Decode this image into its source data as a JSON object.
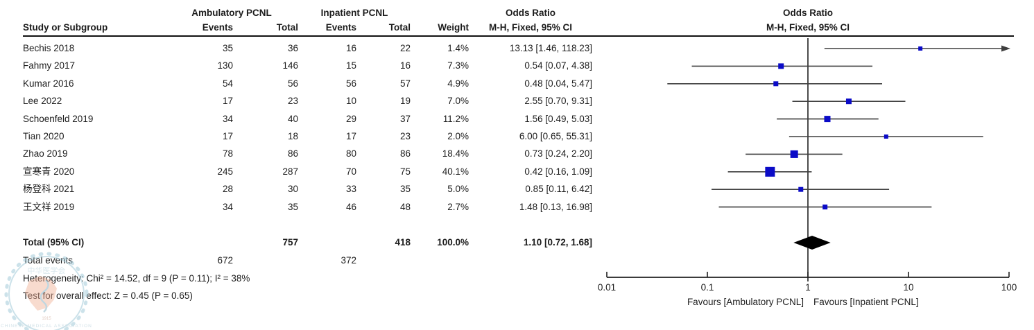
{
  "header": {
    "group_ambulatory": "Ambulatory PCNL",
    "group_inpatient": "Inpatient PCNL",
    "col_study": "Study or Subgroup",
    "col_events": "Events",
    "col_total": "Total",
    "col_weight": "Weight",
    "odds_ratio_title": "Odds Ratio",
    "odds_ratio_method": "M-H, Fixed, 95% CI"
  },
  "chart_data": {
    "type": "scatter",
    "subtype": "forest-plot-meta-analysis",
    "effect_measure": "Odds Ratio, Mantel-Haenszel Fixed effect, 95% CI",
    "x_scale": "log10",
    "x_ticks": [
      0.01,
      0.1,
      1,
      10,
      100
    ],
    "x_range": [
      0.01,
      100
    ],
    "legend_position": "none",
    "grid": false,
    "studies": [
      {
        "name": "Bechis 2018",
        "amb_events": "35",
        "amb_total": "36",
        "inp_events": "16",
        "inp_total": "22",
        "weight_pct": 1.4,
        "weight_label": "1.4%",
        "or": 13.13,
        "ci_low": 1.46,
        "ci_high": 118.23,
        "or_label": "13.13 [1.46, 118.23]"
      },
      {
        "name": "Fahmy 2017",
        "amb_events": "130",
        "amb_total": "146",
        "inp_events": "15",
        "inp_total": "16",
        "weight_pct": 7.3,
        "weight_label": "7.3%",
        "or": 0.54,
        "ci_low": 0.07,
        "ci_high": 4.38,
        "or_label": "0.54 [0.07, 4.38]"
      },
      {
        "name": "Kumar 2016",
        "amb_events": "54",
        "amb_total": "56",
        "inp_events": "56",
        "inp_total": "57",
        "weight_pct": 4.9,
        "weight_label": "4.9%",
        "or": 0.48,
        "ci_low": 0.04,
        "ci_high": 5.47,
        "or_label": "0.48 [0.04, 5.47]"
      },
      {
        "name": "Lee 2022",
        "amb_events": "17",
        "amb_total": "23",
        "inp_events": "10",
        "inp_total": "19",
        "weight_pct": 7.0,
        "weight_label": "7.0%",
        "or": 2.55,
        "ci_low": 0.7,
        "ci_high": 9.31,
        "or_label": "2.55 [0.70, 9.31]"
      },
      {
        "name": "Schoenfeld 2019",
        "amb_events": "34",
        "amb_total": "40",
        "inp_events": "29",
        "inp_total": "37",
        "weight_pct": 11.2,
        "weight_label": "11.2%",
        "or": 1.56,
        "ci_low": 0.49,
        "ci_high": 5.03,
        "or_label": "1.56 [0.49, 5.03]"
      },
      {
        "name": "Tian 2020",
        "amb_events": "17",
        "amb_total": "18",
        "inp_events": "17",
        "inp_total": "23",
        "weight_pct": 2.0,
        "weight_label": "2.0%",
        "or": 6.0,
        "ci_low": 0.65,
        "ci_high": 55.31,
        "or_label": "6.00 [0.65, 55.31]"
      },
      {
        "name": "Zhao 2019",
        "amb_events": "78",
        "amb_total": "86",
        "inp_events": "80",
        "inp_total": "86",
        "weight_pct": 18.4,
        "weight_label": "18.4%",
        "or": 0.73,
        "ci_low": 0.24,
        "ci_high": 2.2,
        "or_label": "0.73 [0.24, 2.20]"
      },
      {
        "name": "宣寒青 2020",
        "amb_events": "245",
        "amb_total": "287",
        "inp_events": "70",
        "inp_total": "75",
        "weight_pct": 40.1,
        "weight_label": "40.1%",
        "or": 0.42,
        "ci_low": 0.16,
        "ci_high": 1.09,
        "or_label": "0.42 [0.16, 1.09]"
      },
      {
        "name": "杨登科 2021",
        "amb_events": "28",
        "amb_total": "30",
        "inp_events": "33",
        "inp_total": "35",
        "weight_pct": 5.0,
        "weight_label": "5.0%",
        "or": 0.85,
        "ci_low": 0.11,
        "ci_high": 6.42,
        "or_label": "0.85 [0.11, 6.42]"
      },
      {
        "name": "王文祥 2019",
        "amb_events": "34",
        "amb_total": "35",
        "inp_events": "46",
        "inp_total": "48",
        "weight_pct": 2.7,
        "weight_label": "2.7%",
        "or": 1.48,
        "ci_low": 0.13,
        "ci_high": 16.98,
        "or_label": "1.48 [0.13, 16.98]"
      }
    ],
    "total": {
      "label": "Total (95% CI)",
      "amb_total": "757",
      "inp_total": "418",
      "weight_label": "100.0%",
      "or": 1.1,
      "ci_low": 0.72,
      "ci_high": 1.68,
      "or_label": "1.10 [0.72, 1.68]"
    },
    "total_events": {
      "label": "Total events",
      "amb_events": "672",
      "inp_events": "372"
    },
    "heterogeneity": "Heterogeneity: Chi² = 14.52, df = 9 (P = 0.11); I² = 38%",
    "overall_effect": "Test for overall effect: Z = 0.45 (P = 0.65)",
    "favours_left": "Favours [Ambulatory PCNL]",
    "favours_right": "Favours [Inpatient PCNL]"
  },
  "watermark": {
    "org_cn": "中华医学会",
    "org_en": "CHINESE MEDICAL ASSOCIATION",
    "year": "1915"
  },
  "colors": {
    "marker": "#0b0bc7",
    "ci_line": "#3f3f3f",
    "axis": "#1f1f1f",
    "diamond": "#000000",
    "watermark_ring": "#a3cbd9",
    "watermark_blob": "#f0b096"
  }
}
